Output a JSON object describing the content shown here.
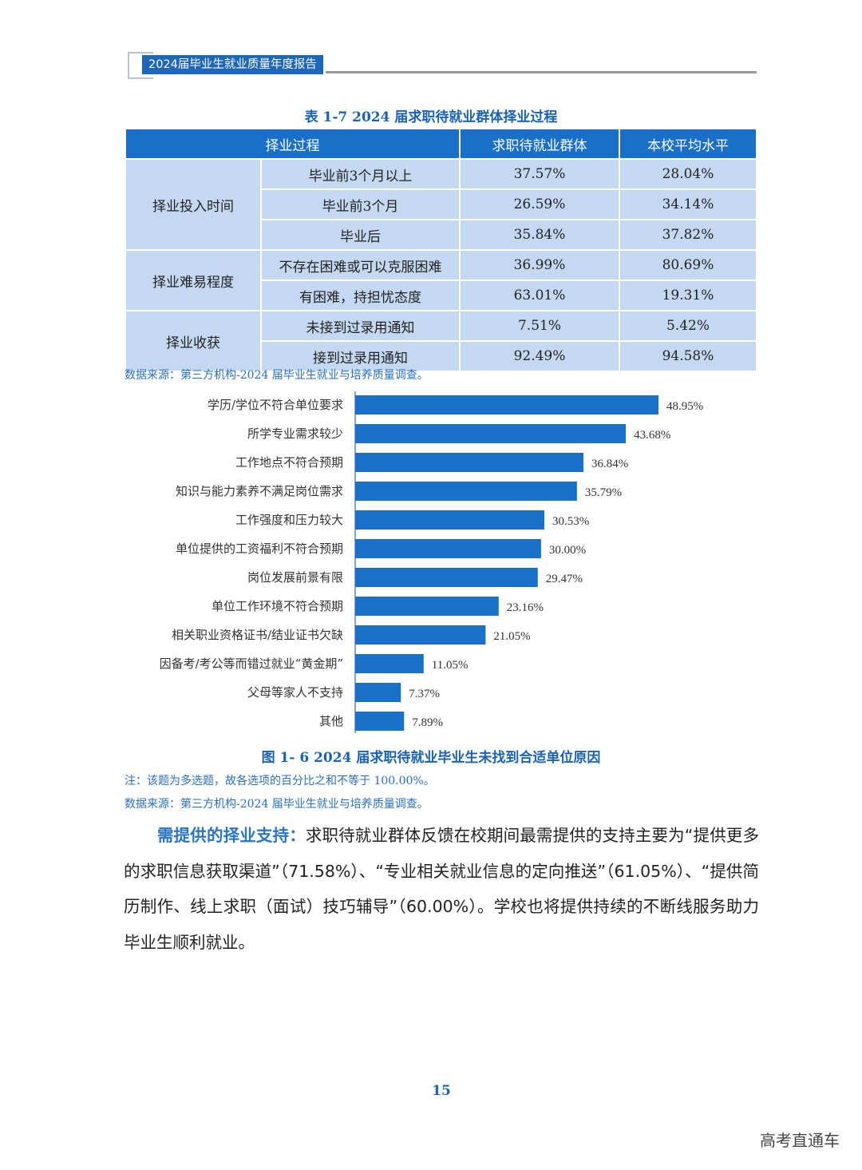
{
  "header": {
    "title": "2024届毕业生就业质量年度报告"
  },
  "table": {
    "caption": "表 1-7   2024 届求职待就业群体择业过程",
    "columns": [
      "择业过程",
      "求职待就业群体",
      "本校平均水平"
    ],
    "groups": [
      {
        "name": "择业投入时间",
        "rows": [
          [
            "毕业前3个月以上",
            "37.57%",
            "28.04%"
          ],
          [
            "毕业前3个月",
            "26.59%",
            "34.14%"
          ],
          [
            "毕业后",
            "35.84%",
            "37.82%"
          ]
        ]
      },
      {
        "name": "择业难易程度",
        "rows": [
          [
            "不存在困难或可以克服困难",
            "36.99%",
            "80.69%"
          ],
          [
            "有困难，持担忧态度",
            "63.01%",
            "19.31%"
          ]
        ]
      },
      {
        "name": "择业收获",
        "rows": [
          [
            "未接到过录用通知",
            "7.51%",
            "5.42%"
          ],
          [
            "接到过录用通知",
            "92.49%",
            "94.58%"
          ]
        ]
      }
    ],
    "source": "数据来源：第三方机构-2024 届毕业生就业与培养质量调查。"
  },
  "chart_data": {
    "type": "bar",
    "orientation": "horizontal",
    "title": "图 1- 6  2024 届求职待就业毕业生未找到合适单位原因",
    "categories": [
      "学历/学位不符合单位要求",
      "所学专业需求较少",
      "工作地点不符合预期",
      "知识与能力素养不满足岗位需求",
      "工作强度和压力较大",
      "单位提供的工资福利不符合预期",
      "岗位发展前景有限",
      "单位工作环境不符合预期",
      "相关职业资格证书/结业证书欠缺",
      "因备考/考公等而错过就业“黄金期”",
      "父母等家人不支持",
      "其他"
    ],
    "values": [
      48.95,
      43.68,
      36.84,
      35.79,
      30.53,
      30.0,
      29.47,
      23.16,
      21.05,
      11.05,
      7.37,
      7.89
    ],
    "labels": [
      "48.95%",
      "43.68%",
      "36.84%",
      "35.79%",
      "30.53%",
      "30.00%",
      "29.47%",
      "23.16%",
      "21.05%",
      "11.05%",
      "7.37%",
      "7.89%"
    ],
    "unit": "%",
    "bar_color": "#1a6fc8",
    "grid": false,
    "note": "注：该题为多选题，故各选项的百分比之和不等于 100.00%。",
    "source": "数据来源：第三方机构-2024 届毕业生就业与培养质量调查。"
  },
  "paragraph": {
    "lead": "需提供的择业支持：",
    "text": "求职待就业群体反馈在校期间最需提供的支持主要为“提供更多的求职信息获取渠道”（71.58%）、“专业相关就业信息的定向推送”（61.05%）、“提供简历制作、线上求职（面试）技巧辅导”（60.00%）。学校也将提供持续的不断线服务助力毕业生顺利就业。"
  },
  "page_number": "15",
  "watermark": "高考直通车"
}
